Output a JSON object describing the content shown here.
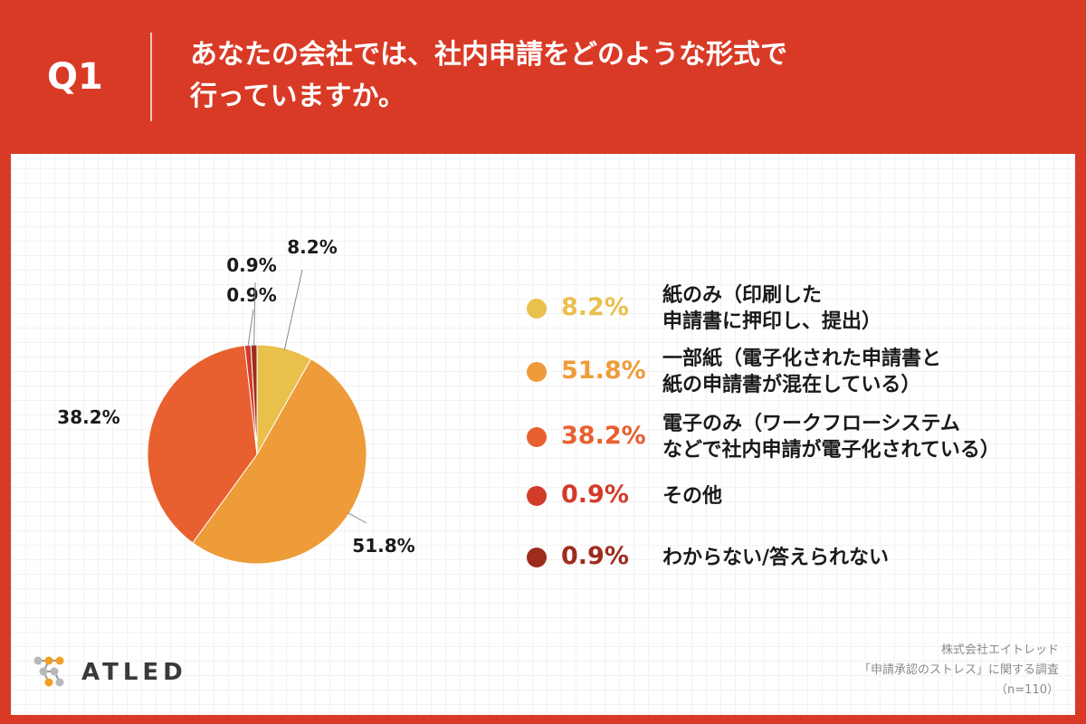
{
  "header": {
    "question_number": "Q1",
    "question_lines": [
      "あなたの会社では、社内申請をどのような形式で",
      "行っていますか。"
    ]
  },
  "chart_data": {
    "type": "pie",
    "title": "",
    "start_angle_deg": 0,
    "direction": "clockwise",
    "slices": [
      {
        "label": "紙のみ（印刷した申請書に押印し、提出）",
        "value": 8.2,
        "value_label": "8.2%",
        "color": "#e9c04c"
      },
      {
        "label": "一部紙（電子化された申請書と紙の申請書が混在している）",
        "value": 51.8,
        "value_label": "51.8%",
        "color": "#ee9c3a"
      },
      {
        "label": "電子のみ（ワークフローシステムなどで社内申請が電子化されている）",
        "value": 38.2,
        "value_label": "38.2%",
        "color": "#e8602f"
      },
      {
        "label": "その他",
        "value": 0.9,
        "value_label": "0.9%",
        "color": "#d23b2a"
      },
      {
        "label": "わからない/答えられない",
        "value": 0.9,
        "value_label": "0.9%",
        "color": "#9e2c1e"
      }
    ]
  },
  "legend": {
    "items": [
      {
        "value": "8.2%",
        "lines": [
          "紙のみ（印刷した",
          "申請書に押印し、提出）"
        ],
        "color": "#e9c04c"
      },
      {
        "value": "51.8%",
        "lines": [
          "一部紙（電子化された申請書と",
          "紙の申請書が混在している）"
        ],
        "color": "#ee9c3a"
      },
      {
        "value": "38.2%",
        "lines": [
          "電子のみ（ワークフローシステム",
          "などで社内申請が電子化されている）"
        ],
        "color": "#e8602f"
      },
      {
        "value": "0.9%",
        "lines": [
          "その他"
        ],
        "color": "#d23b2a"
      },
      {
        "value": "0.9%",
        "lines": [
          "わからない/答えられない"
        ],
        "color": "#9e2c1e"
      }
    ]
  },
  "logo": {
    "text": "ATLED",
    "icon": "atled-network-logo-icon"
  },
  "source": {
    "company": "株式会社エイトレッド",
    "survey": "「申請承認のストレス」に関する調査",
    "sample": "（n=110）"
  }
}
